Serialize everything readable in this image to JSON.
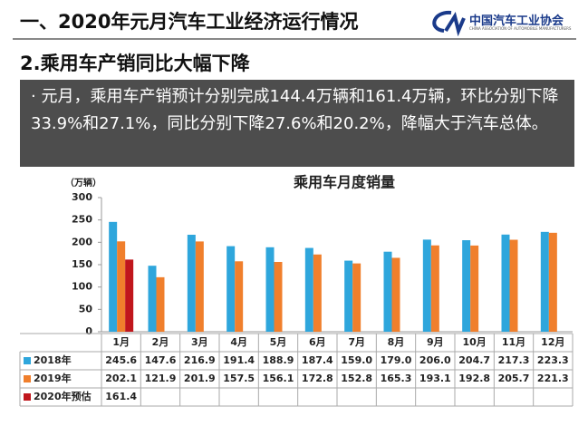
{
  "header": {
    "title": "一、2020年元月汽车工业经济运行情况",
    "logo_cn": "中国汽车工业协会",
    "logo_en": "CHINA ASSOCIATION OF AUTOMOBILE MANUFACTURERS"
  },
  "subtitle": "2.乘用车产销同比大幅下降",
  "bullet": "元月，乘用车产销预计分别完成144.4万辆和161.4万辆，环比分别下降33.9%和27.1%，同比分别下降27.6%和20.2%，降幅大于汽车总体。",
  "chart_data": {
    "type": "bar",
    "title": "乘用车月度销量",
    "y_label": "（万辆）",
    "categories": [
      "1月",
      "2月",
      "3月",
      "4月",
      "5月",
      "6月",
      "7月",
      "8月",
      "9月",
      "10月",
      "11月",
      "12月"
    ],
    "series": [
      {
        "name": "2018年",
        "color": "#2ea6dc",
        "values": [
          245.6,
          147.6,
          216.9,
          191.4,
          188.9,
          187.4,
          159.0,
          179.0,
          206.0,
          204.7,
          217.3,
          223.3
        ],
        "value_labels": [
          "245.6",
          "147.6",
          "216.9",
          "191.4",
          "188.9",
          "187.4",
          "159.0",
          "179.0",
          "206.0",
          "204.7",
          "217.3",
          "223.3"
        ]
      },
      {
        "name": "2019年",
        "color": "#f07f2c",
        "values": [
          202.1,
          121.9,
          201.9,
          157.5,
          156.1,
          172.8,
          152.8,
          165.3,
          193.1,
          192.8,
          205.7,
          221.3
        ],
        "value_labels": [
          "202.1",
          "121.9",
          "201.9",
          "157.5",
          "156.1",
          "172.8",
          "152.8",
          "165.3",
          "193.1",
          "192.8",
          "205.7",
          "221.3"
        ]
      },
      {
        "name": "2020年预估",
        "color": "#c0161c",
        "values": [
          161.4,
          null,
          null,
          null,
          null,
          null,
          null,
          null,
          null,
          null,
          null,
          null
        ]
      }
    ],
    "ylim": [
      0,
      300
    ],
    "yticks": [
      0,
      50,
      100,
      150,
      200,
      250,
      300
    ]
  }
}
